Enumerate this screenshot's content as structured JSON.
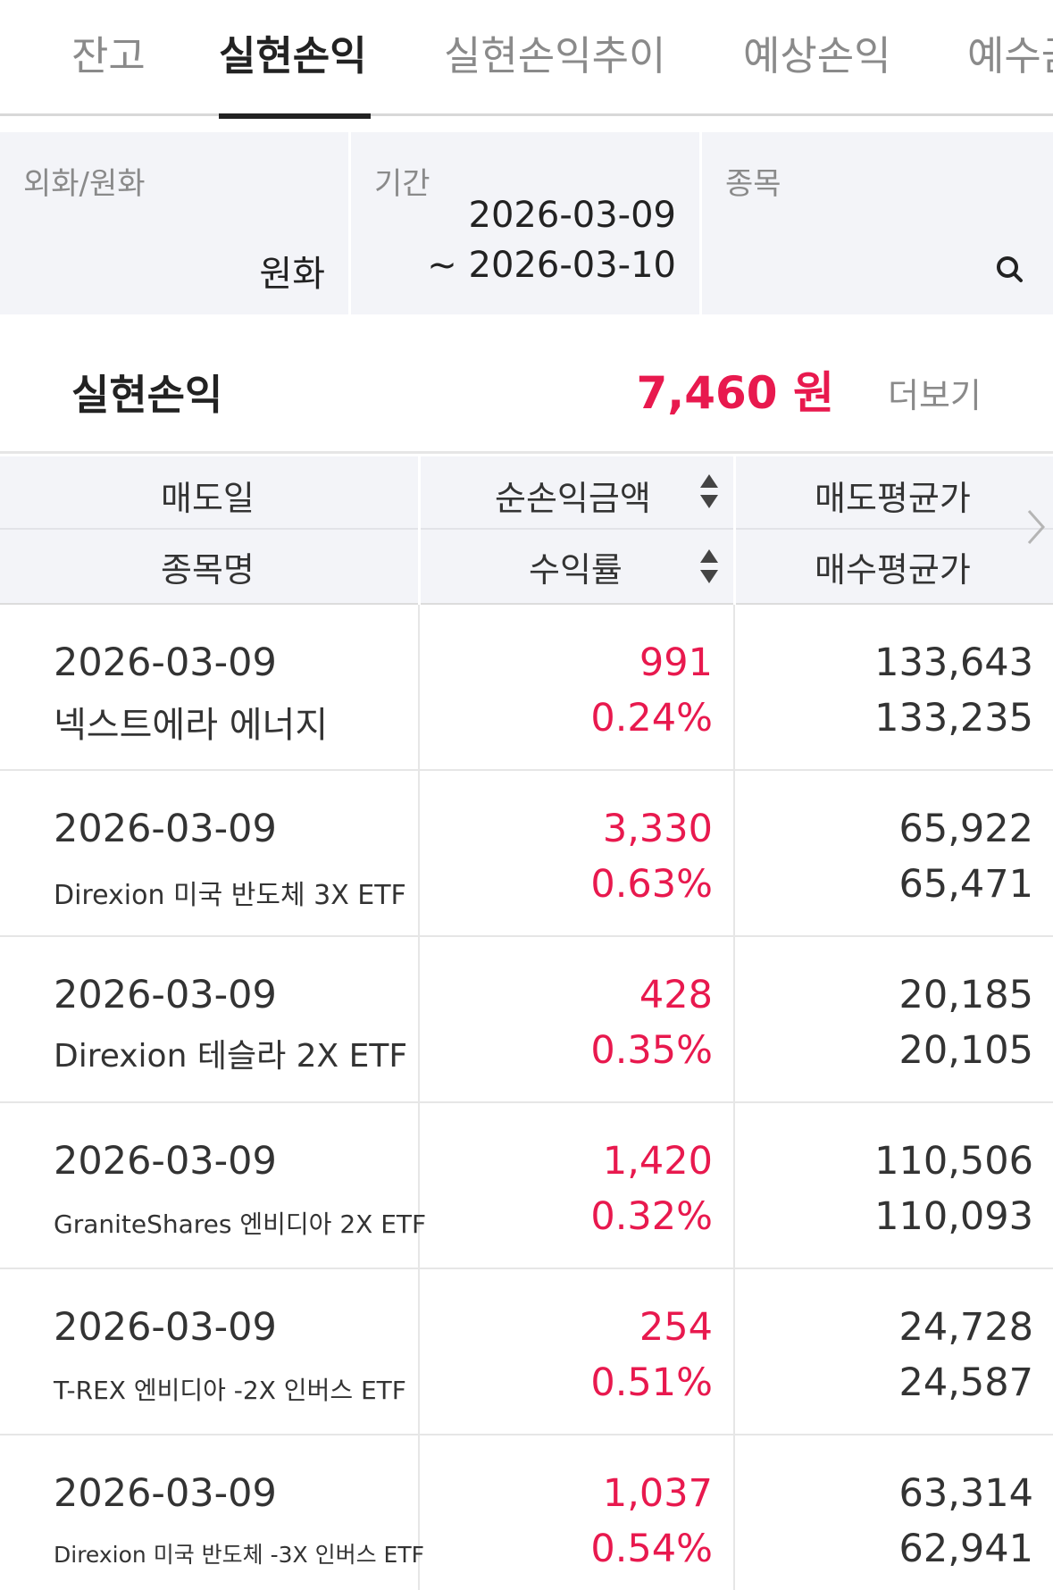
{
  "tabs": [
    {
      "label": "잔고"
    },
    {
      "label": "실현손익"
    },
    {
      "label": "실현손익추이"
    },
    {
      "label": "예상손익"
    },
    {
      "label": "예수금"
    }
  ],
  "filters": {
    "currency": {
      "label": "외화/원화",
      "value": "원화"
    },
    "period": {
      "label": "기간",
      "start": "2026-03-09",
      "end": "~ 2026-03-10"
    },
    "stock": {
      "label": "종목",
      "icon": "search-icon"
    }
  },
  "summary": {
    "label": "실현손익",
    "value": "7,460 원",
    "more_label": "더보기"
  },
  "table": {
    "headers": {
      "sell_date": "매도일",
      "net_profit": "순손익금액",
      "sell_avg": "매도평균가",
      "stock_name": "종목명",
      "return_rate": "수익률",
      "buy_avg": "매수평균가"
    },
    "rows": [
      {
        "date": "2026-03-09",
        "name": "넥스트에라 에너지",
        "amount": "991",
        "rate": "0.24%",
        "sell": "133,643",
        "buy": "133,235"
      },
      {
        "date": "2026-03-09",
        "name": "Direxion 미국 반도체 3X ETF",
        "amount": "3,330",
        "rate": "0.63%",
        "sell": "65,922",
        "buy": "65,471"
      },
      {
        "date": "2026-03-09",
        "name": "Direxion 테슬라 2X ETF",
        "amount": "428",
        "rate": "0.35%",
        "sell": "20,185",
        "buy": "20,105"
      },
      {
        "date": "2026-03-09",
        "name": "GraniteShares 엔비디아 2X ETF",
        "amount": "1,420",
        "rate": "0.32%",
        "sell": "110,506",
        "buy": "110,093"
      },
      {
        "date": "2026-03-09",
        "name": "T-REX 엔비디아 -2X 인버스 ETF",
        "amount": "254",
        "rate": "0.51%",
        "sell": "24,728",
        "buy": "24,587"
      },
      {
        "date": "2026-03-09",
        "name": "Direxion 미국 반도체 -3X 인버스 ETF",
        "amount": "1,037",
        "rate": "0.54%",
        "sell": "63,314",
        "buy": "62,941"
      }
    ]
  },
  "colors": {
    "accent_red": "#e8194e",
    "panel_bg": "#f3f4f8"
  }
}
